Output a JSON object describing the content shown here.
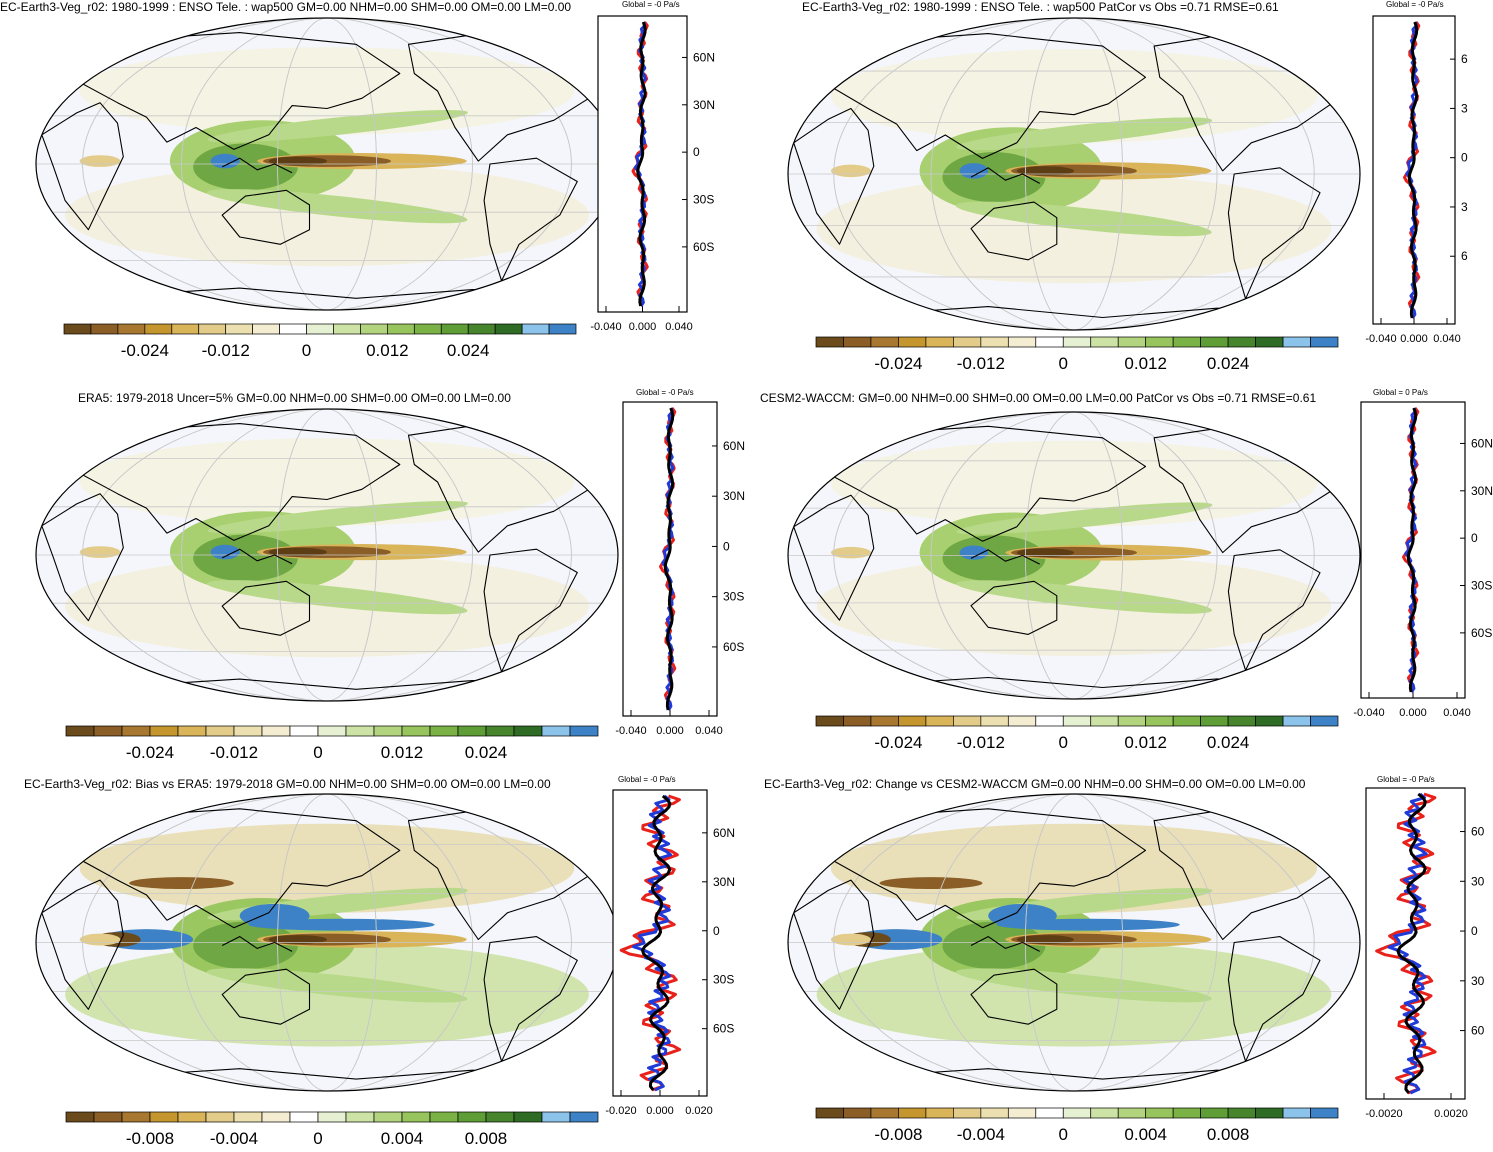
{
  "colors": {
    "colorbar": [
      "#6b4a1c",
      "#8a5e26",
      "#a97830",
      "#c4962d",
      "#d9b458",
      "#e3cc8a",
      "#ece0b0",
      "#f4edd2",
      "#ffffff",
      "#e6f0d2",
      "#cde3a5",
      "#b3d47e",
      "#97c45c",
      "#7bb245",
      "#5f9e36",
      "#46852c",
      "#2e6b24",
      "#8cc3ea",
      "#3d82c6"
    ],
    "bias_colorbar": [
      "#6b4a1c",
      "#8a5e26",
      "#a97830",
      "#c4962d",
      "#d9b458",
      "#e3cc8a",
      "#ece0b0",
      "#f4edd2",
      "#ffffff",
      "#e6f0d2",
      "#cde3a5",
      "#b3d47e",
      "#97c45c",
      "#7bb245",
      "#5f9e36",
      "#46852c",
      "#2e6b24",
      "#8cc3ea",
      "#3d82c6"
    ],
    "model_line": "#e8221b",
    "obs_line": "#1f3ad8",
    "ref_line": "#000000",
    "map_background": "#f5f6fb",
    "grid": "#c8c8c8"
  },
  "panels": [
    {
      "id": "p1",
      "title": "EC-Earth3-Veg_r02: 1980-1999 : ENSO Tele. : wap500 GM=0.00 NHM=0.00 SHM=0.00 OM=0.00 LM=0.00",
      "zonal_title": "Global = -0 Pa/s",
      "colorbar_labels": [
        "-0.024",
        "-0.012",
        "0",
        "0.012",
        "0.024"
      ],
      "zonal_xticks": [
        "-0.040",
        "0.000",
        "0.040"
      ],
      "lat_labels": [
        "60N",
        "30N",
        "0",
        "30S",
        "60S"
      ]
    },
    {
      "id": "p2",
      "title": "EC-Earth3-Veg_r02: 1980-1999 : ENSO Tele. : wap500 PatCor vs Obs =0.71 RMSE=0.61",
      "zonal_title": "Global = -0 Pa/s",
      "colorbar_labels": [
        "-0.024",
        "-0.012",
        "0",
        "0.012",
        "0.024"
      ],
      "zonal_xticks": [
        "-0.040",
        "0.000",
        "0.040"
      ],
      "lat_labels": [
        "6",
        "3",
        "0",
        "3",
        "6"
      ]
    },
    {
      "id": "p3",
      "title": "ERA5: 1979-2018 Uncer=5% GM=0.00 NHM=0.00 SHM=0.00 OM=0.00 LM=0.00",
      "zonal_title": "Global = -0 Pa/s",
      "colorbar_labels": [
        "-0.024",
        "-0.012",
        "0",
        "0.012",
        "0.024"
      ],
      "zonal_xticks": [
        "-0.040",
        "0.000",
        "0.040"
      ],
      "lat_labels": [
        "60N",
        "30N",
        "0",
        "30S",
        "60S"
      ]
    },
    {
      "id": "p4",
      "title": "CESM2-WACCM: GM=0.00 NHM=0.00 SHM=0.00 OM=0.00 LM=0.00 PatCor vs Obs =0.71 RMSE=0.61",
      "zonal_title": "Global = 0 Pa/s",
      "colorbar_labels": [
        "-0.024",
        "-0.012",
        "0",
        "0.012",
        "0.024"
      ],
      "zonal_xticks": [
        "-0.040",
        "0.000",
        "0.040"
      ],
      "lat_labels": [
        "60N",
        "30N",
        "0",
        "30S",
        "60S"
      ]
    },
    {
      "id": "p5",
      "title": "EC-Earth3-Veg_r02: Bias vs ERA5: 1979-2018 GM=0.00 NHM=0.00 SHM=0.00 OM=0.00 LM=0.00",
      "zonal_title": "Global = -0 Pa/s",
      "colorbar_labels": [
        "-0.008",
        "-0.004",
        "0",
        "0.004",
        "0.008"
      ],
      "zonal_xticks": [
        "-0.020",
        "0.000",
        "0.020"
      ],
      "lat_labels": [
        "60N",
        "30N",
        "0",
        "30S",
        "60S"
      ]
    },
    {
      "id": "p6",
      "title": "EC-Earth3-Veg_r02: Change vs CESM2-WACCM GM=0.00 NHM=0.00 SHM=0.00 OM=0.00 LM=0.00",
      "zonal_title": "Global = -0 Pa/s",
      "colorbar_labels": [
        "-0.008",
        "-0.004",
        "0",
        "0.004",
        "0.008"
      ],
      "zonal_xticks": [
        "-0.0020",
        "0.0020"
      ],
      "lat_labels": [
        "60",
        "30",
        "0",
        "30",
        "60"
      ]
    }
  ],
  "chart_data": [
    {
      "type": "heatmap",
      "title": "EC-Earth3-Veg_r02: 1980-1999 : ENSO Tele. : wap500 GM=0.00 NHM=0.00 SHM=0.00 OM=0.00 LM=0.00",
      "colorbar": {
        "min": -0.03,
        "max": 0.03,
        "ticks": [
          -0.024,
          -0.012,
          0,
          0.012,
          0.024
        ]
      },
      "zonal_mean_panel": {
        "title": "Global = -0 Pa/s",
        "xlim": [
          -0.05,
          0.05
        ],
        "xticks": [
          -0.04,
          0.0,
          0.04
        ],
        "yticks": [
          "60N",
          "30N",
          "0",
          "30S",
          "60S"
        ]
      }
    },
    {
      "type": "heatmap",
      "title": "EC-Earth3-Veg_r02: 1980-1999 : ENSO Tele. : wap500 PatCor vs Obs =0.71 RMSE=0.61",
      "colorbar": {
        "min": -0.03,
        "max": 0.03,
        "ticks": [
          -0.024,
          -0.012,
          0,
          0.012,
          0.024
        ]
      },
      "zonal_mean_panel": {
        "title": "Global = -0 Pa/s",
        "xlim": [
          -0.05,
          0.05
        ],
        "xticks": [
          -0.04,
          0.0,
          0.04
        ]
      }
    },
    {
      "type": "heatmap",
      "title": "ERA5: 1979-2018 Uncer=5% GM=0.00 NHM=0.00 SHM=0.00 OM=0.00 LM=0.00",
      "colorbar": {
        "min": -0.03,
        "max": 0.03,
        "ticks": [
          -0.024,
          -0.012,
          0,
          0.012,
          0.024
        ]
      },
      "zonal_mean_panel": {
        "title": "Global = -0 Pa/s",
        "xlim": [
          -0.05,
          0.05
        ],
        "xticks": [
          -0.04,
          0.0,
          0.04
        ],
        "yticks": [
          "60N",
          "30N",
          "0",
          "30S",
          "60S"
        ]
      }
    },
    {
      "type": "heatmap",
      "title": "CESM2-WACCM: GM=0.00 NHM=0.00 SHM=0.00 OM=0.00 LM=0.00 PatCor vs Obs =0.71 RMSE=0.61",
      "colorbar": {
        "min": -0.03,
        "max": 0.03,
        "ticks": [
          -0.024,
          -0.012,
          0,
          0.012,
          0.024
        ]
      },
      "zonal_mean_panel": {
        "title": "Global = 0 Pa/s",
        "xlim": [
          -0.05,
          0.05
        ],
        "xticks": [
          -0.04,
          0.0,
          0.04
        ],
        "yticks": [
          "60N",
          "30N",
          "0",
          "30S",
          "60S"
        ]
      }
    },
    {
      "type": "heatmap",
      "title": "EC-Earth3-Veg_r02: Bias vs ERA5: 1979-2018 GM=0.00 NHM=0.00 SHM=0.00 OM=0.00 LM=0.00",
      "colorbar": {
        "min": -0.01,
        "max": 0.01,
        "ticks": [
          -0.008,
          -0.004,
          0,
          0.004,
          0.008
        ]
      },
      "zonal_mean_panel": {
        "title": "Global = -0 Pa/s",
        "xlim": [
          -0.025,
          0.025
        ],
        "xticks": [
          -0.02,
          0.0,
          0.02
        ],
        "yticks": [
          "60N",
          "30N",
          "0",
          "30S",
          "60S"
        ]
      }
    },
    {
      "type": "heatmap",
      "title": "EC-Earth3-Veg_r02: Change vs CESM2-WACCM GM=0.00 NHM=0.00 SHM=0.00 OM=0.00 LM=0.00",
      "colorbar": {
        "min": -0.01,
        "max": 0.01,
        "ticks": [
          -0.008,
          -0.004,
          0,
          0.004,
          0.008
        ]
      },
      "zonal_mean_panel": {
        "title": "Global = -0 Pa/s",
        "xlim": [
          -0.003,
          0.003
        ],
        "xticks": [
          -0.002,
          0.002
        ]
      }
    }
  ]
}
